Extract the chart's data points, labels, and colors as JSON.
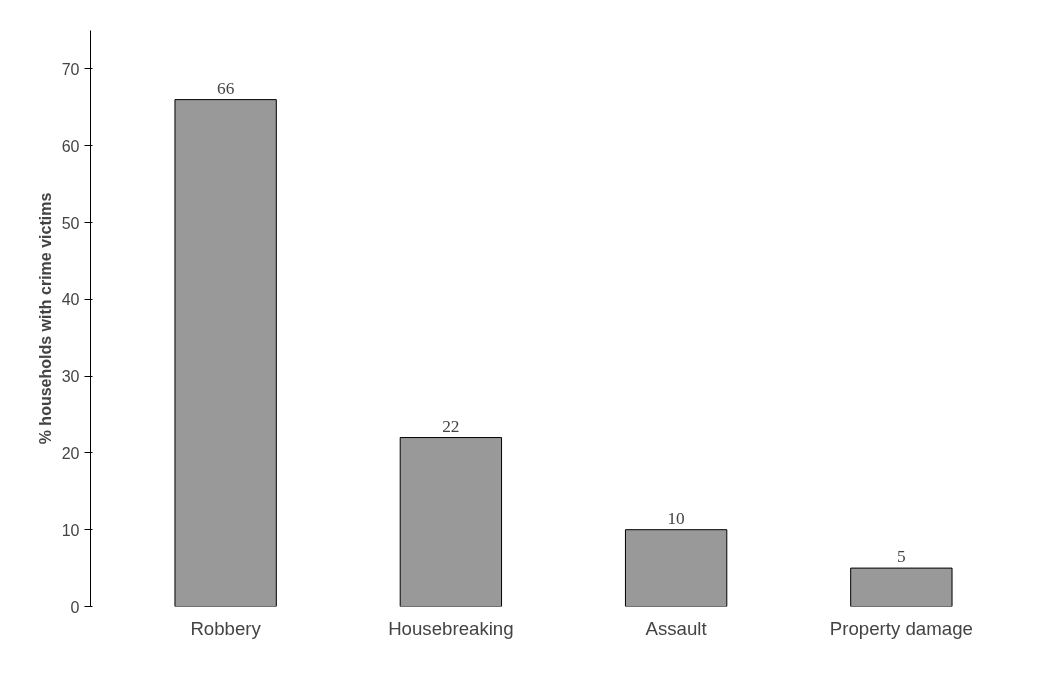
{
  "chart_data": {
    "type": "bar",
    "ylabel": "% households with crime victims",
    "categories": [
      "Robbery",
      "Housebreaking",
      "Assault",
      "Property damage"
    ],
    "values": [
      66,
      22,
      10,
      5
    ],
    "color": "#999999",
    "ylim": [
      0,
      75
    ],
    "yticks": [
      0,
      10,
      20,
      30,
      40,
      50,
      60,
      70
    ],
    "grid": false,
    "data_labels": true
  }
}
